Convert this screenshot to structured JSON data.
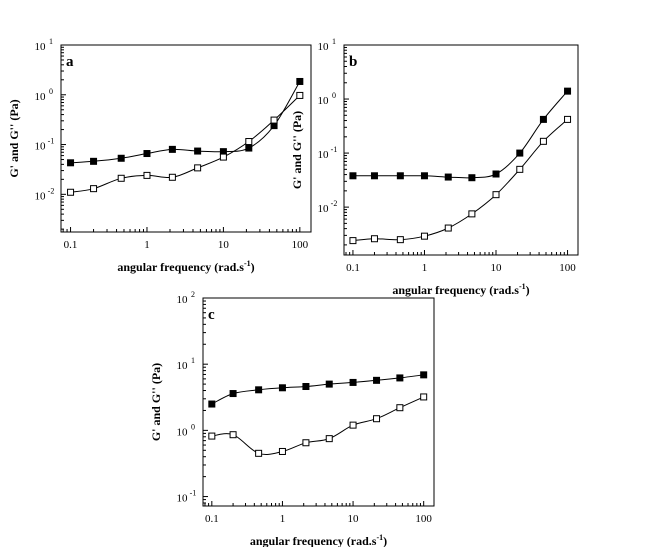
{
  "chart_data": [
    {
      "type": "scatter",
      "panel": "a",
      "xlabel": "angular frequency (rad.s",
      "xlabel_sup": "-1",
      "xlabel_end": ")",
      "ylabel": "G' and G'' (Pa)",
      "xscale": "log",
      "yscale": "log",
      "xlim": [
        0.075,
        140
      ],
      "ylim": [
        0.00175,
        10
      ],
      "xticks": [
        {
          "label": "0.1",
          "v": 0.1
        },
        {
          "label": "1",
          "v": 1
        },
        {
          "label": "10",
          "v": 10
        },
        {
          "label": "100",
          "v": 100
        }
      ],
      "yticks": [
        {
          "base": "10",
          "exp": "-2",
          "v": 0.01
        },
        {
          "base": "10",
          "exp": "-1",
          "v": 0.1
        },
        {
          "base": "10",
          "exp": "0",
          "v": 1
        },
        {
          "base": "10",
          "exp": "1",
          "v": 10
        }
      ],
      "series": [
        {
          "marker": "filled-square",
          "x": [
            0.1,
            0.2,
            0.46,
            1,
            2.15,
            4.6,
            10,
            21.5,
            46,
            100
          ],
          "y": [
            0.043,
            0.046,
            0.053,
            0.066,
            0.08,
            0.074,
            0.072,
            0.085,
            0.24,
            1.85
          ]
        },
        {
          "marker": "open-square",
          "x": [
            0.1,
            0.2,
            0.46,
            1,
            2.15,
            4.6,
            10,
            21.5,
            46,
            100
          ],
          "y": [
            0.011,
            0.013,
            0.021,
            0.024,
            0.022,
            0.034,
            0.056,
            0.115,
            0.31,
            0.97
          ]
        }
      ]
    },
    {
      "type": "scatter",
      "panel": "b",
      "xlabel": "angular frequency (rad.s",
      "xlabel_sup": "-1",
      "xlabel_end": ")",
      "ylabel": "G' and G'' (Pa)",
      "xscale": "log",
      "yscale": "log",
      "xlim": [
        0.075,
        140
      ],
      "ylim": [
        0.0013,
        10
      ],
      "xticks": [
        {
          "label": "0.1",
          "v": 0.1
        },
        {
          "label": "1",
          "v": 1
        },
        {
          "label": "10",
          "v": 10
        },
        {
          "label": "100",
          "v": 100
        }
      ],
      "yticks": [
        {
          "base": "10",
          "exp": "-2",
          "v": 0.01
        },
        {
          "base": "10",
          "exp": "-1",
          "v": 0.1
        },
        {
          "base": "10",
          "exp": "0",
          "v": 1
        },
        {
          "base": "10",
          "exp": "1",
          "v": 10
        }
      ],
      "series": [
        {
          "marker": "filled-square",
          "x": [
            0.1,
            0.2,
            0.46,
            1,
            2.15,
            4.6,
            10,
            21.5,
            46,
            100
          ],
          "y": [
            0.038,
            0.038,
            0.038,
            0.038,
            0.036,
            0.035,
            0.041,
            0.1,
            0.42,
            1.4
          ]
        },
        {
          "marker": "open-square",
          "x": [
            0.1,
            0.2,
            0.46,
            1,
            2.15,
            4.6,
            10,
            21.5,
            46,
            100
          ],
          "y": [
            0.0024,
            0.0026,
            0.0025,
            0.0029,
            0.0041,
            0.0075,
            0.017,
            0.05,
            0.165,
            0.42
          ]
        }
      ]
    },
    {
      "type": "scatter",
      "panel": "c",
      "xlabel": "angular frequency (rad.s",
      "xlabel_sup": "-1",
      "xlabel_end": ")",
      "ylabel": "G' and G'' (Pa)",
      "xscale": "log",
      "yscale": "log",
      "xlim": [
        0.075,
        140
      ],
      "ylim": [
        0.072,
        100
      ],
      "xticks": [
        {
          "label": "0.1",
          "v": 0.1
        },
        {
          "label": "1",
          "v": 1
        },
        {
          "label": "10",
          "v": 10
        },
        {
          "label": "100",
          "v": 100
        }
      ],
      "yticks": [
        {
          "base": "10",
          "exp": "-1",
          "v": 0.1
        },
        {
          "base": "10",
          "exp": "0",
          "v": 1
        },
        {
          "base": "10",
          "exp": "1",
          "v": 10
        },
        {
          "base": "10",
          "exp": "2",
          "v": 100
        }
      ],
      "series": [
        {
          "marker": "filled-square",
          "x": [
            0.1,
            0.2,
            0.46,
            1,
            2.15,
            4.6,
            10,
            21.5,
            46,
            100
          ],
          "y": [
            2.5,
            3.6,
            4.1,
            4.4,
            4.6,
            5.0,
            5.3,
            5.7,
            6.2,
            6.9
          ]
        },
        {
          "marker": "open-square",
          "x": [
            0.1,
            0.2,
            0.46,
            1,
            2.15,
            4.6,
            10,
            21.5,
            46,
            100
          ],
          "y": [
            0.82,
            0.86,
            0.45,
            0.48,
            0.65,
            0.75,
            1.2,
            1.5,
            2.2,
            3.2
          ]
        }
      ]
    }
  ]
}
